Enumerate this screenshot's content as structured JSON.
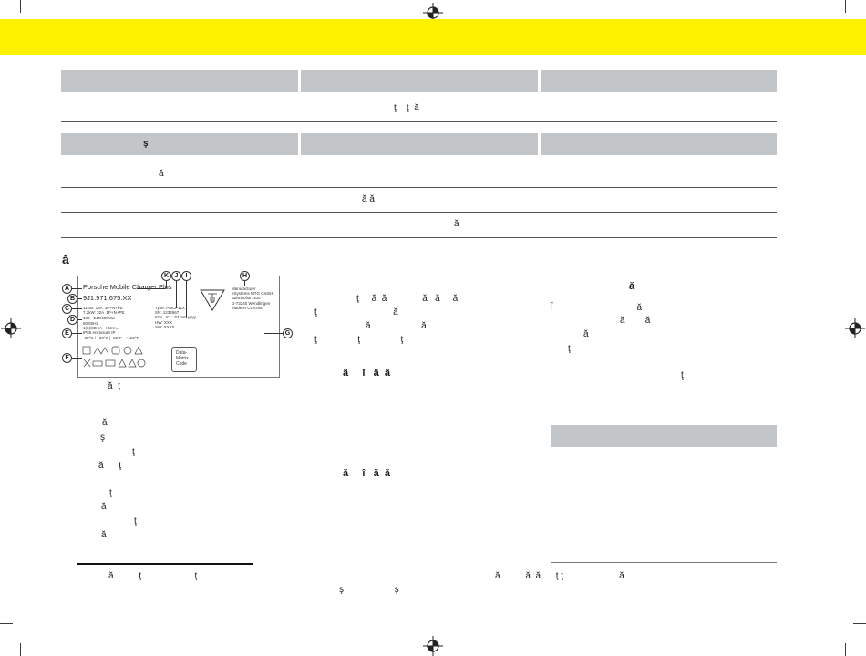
{
  "page": {
    "band_color": "#fff200",
    "table_header_color": "#c3c6c9"
  },
  "table1": {
    "row1": "ţ    ţ  ă"
  },
  "table2": {
    "header_col1": "ş",
    "row1": "ă",
    "row2": "ă ă",
    "row3": "ă"
  },
  "section": {
    "title": "ă"
  },
  "rating_label": {
    "callouts": [
      "A",
      "B",
      "C",
      "D",
      "E",
      "F",
      "G",
      "H",
      "I",
      "J",
      "K"
    ],
    "product_name": "Porsche Mobile Charger Plus",
    "part_number": "9J1.971.675.XX",
    "power_lines": "11kW: 16A  3P+N+PE\n7.2kW: 32A  1P+N+PE",
    "voltage_line": "100 - 240/400Vac",
    "freq_lines": "50/60Hz\n1(6)/30mA~ / 6mA=\nIP55 enclosure IP",
    "temp_line": "-30°C / +50°C | -22°F - +122°F",
    "type_lines": "Type: PMCP11X\nSN: 1234567\nEOL, ICL: dd.mm.yyyy\nHW: XXX\nSW: XXXX",
    "manufacturer_lines": "Manufacturer\neSystems MTG GmbH\nBahnhofstr. 100\nD-73240 Wendlingen\nMade in Czechia",
    "datamatrix_lines": "Data-\nMatrix\nCode"
  },
  "left_column": {
    "caption": "ă  ţ",
    "items": [
      "ă",
      "ş",
      "ţ",
      "ă      ţ",
      "ţ",
      "ă",
      "ţ",
      "ă"
    ],
    "footnote": "ă          ţ                     ţ"
  },
  "middle_column": {
    "para_line1": "ţ     ă  ă              ă   ă     ă",
    "para_line2": "ţ                              ă",
    "para_line3": "ă                    ă",
    "para_line4": "ţ                ţ                ţ",
    "subhead1": "ă     î   ă  ă",
    "subhead2": "ă     î   ă  ă",
    "footnote_line1": "ă          ă  ă      ţ ţ                      ă",
    "footnote_line2": "ş                    ş"
  },
  "right_column": {
    "subhead": "ă",
    "line1": "Î                                 ă",
    "line2": "ă        ă",
    "line3": "ă",
    "line4": "ţ",
    "line5": "ţ"
  }
}
